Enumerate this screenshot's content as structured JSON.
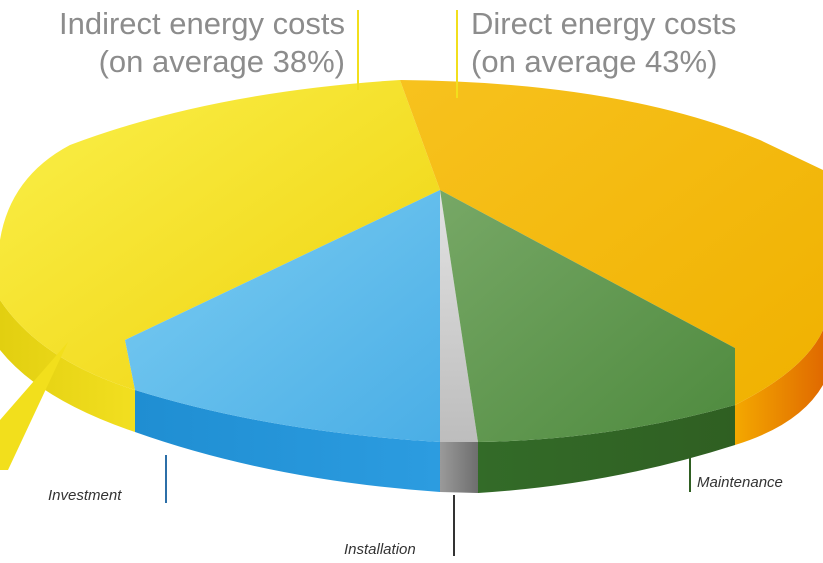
{
  "chart_data": {
    "type": "pie",
    "style": "3d",
    "slices": [
      {
        "label": "Direct energy costs",
        "percent": 43,
        "color": "#f5b800"
      },
      {
        "label": "Maintenance",
        "percent": 11,
        "color": "#4f8a3c"
      },
      {
        "label": "Installation",
        "percent": 1.5,
        "color": "#b4b4b4"
      },
      {
        "label": "Investment",
        "percent": 12,
        "color": "#3aa3e0"
      },
      {
        "label": "Indirect energy costs",
        "percent": 38,
        "color": "#f2df1c"
      }
    ],
    "annotations": {
      "indirect_line1": "Indirect energy costs",
      "indirect_line2": "(on average 38%)",
      "direct_line1": "Direct energy costs",
      "direct_line2": "(on average 43%)",
      "investment": "Investment",
      "installation": "Installation",
      "maintenance": "Maintenance"
    }
  }
}
